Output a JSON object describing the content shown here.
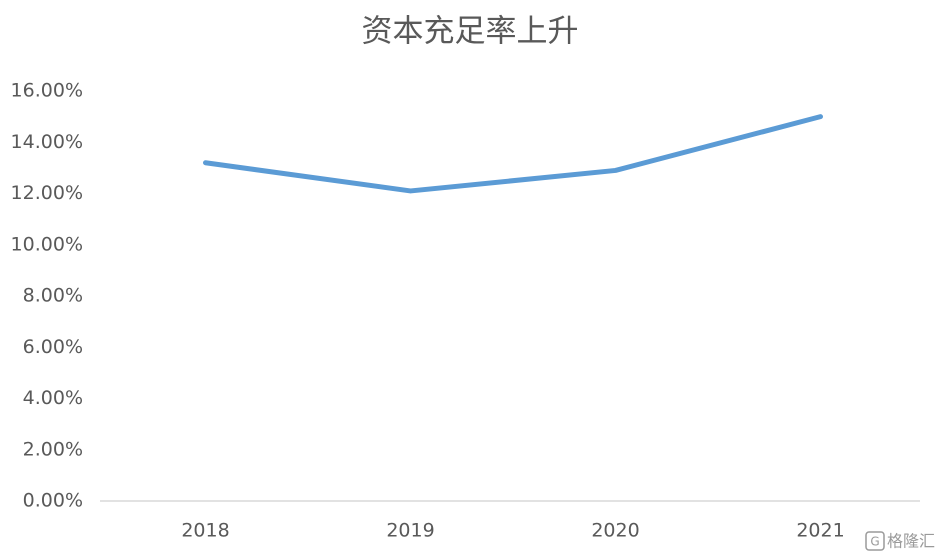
{
  "chart_data": {
    "type": "line",
    "title": "资本充足率上升",
    "categories": [
      "2018",
      "2019",
      "2020",
      "2021"
    ],
    "series": [
      {
        "name": "资本充足率",
        "color": "#5b9bd5",
        "values": [
          13.2,
          12.1,
          12.9,
          15.0
        ]
      }
    ],
    "ylim": [
      0,
      16
    ],
    "yticks": [
      {
        "value": 0,
        "label": "0.00%"
      },
      {
        "value": 2,
        "label": "2.00%"
      },
      {
        "value": 4,
        "label": "4.00%"
      },
      {
        "value": 6,
        "label": "6.00%"
      },
      {
        "value": 8,
        "label": "8.00%"
      },
      {
        "value": 10,
        "label": "10.00%"
      },
      {
        "value": 12,
        "label": "12.00%"
      },
      {
        "value": 14,
        "label": "14.00%"
      },
      {
        "value": 16,
        "label": "16.00%"
      }
    ],
    "grid": false,
    "legend": false,
    "watermark": "格隆汇"
  }
}
